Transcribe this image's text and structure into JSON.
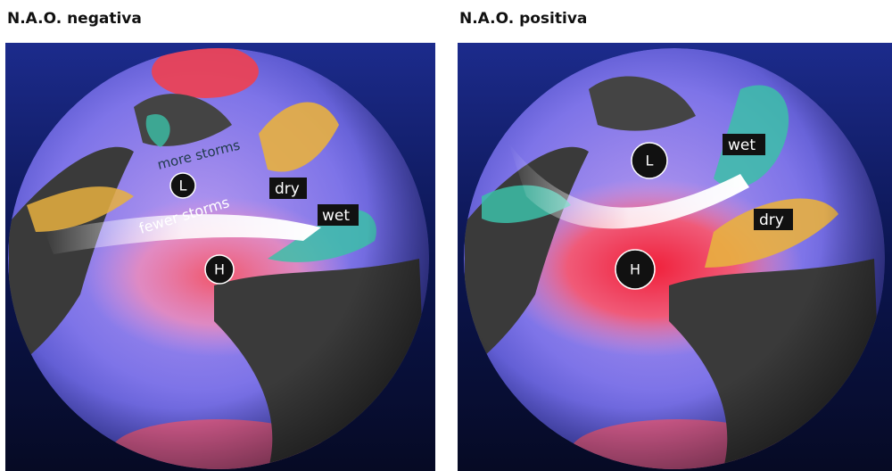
{
  "panels": [
    {
      "title": "N.A.O. negativa",
      "more_storms": "more storms",
      "fewer_storms": "fewer storms",
      "low": "L",
      "high": "H",
      "dry": "dry",
      "wet": "wet"
    },
    {
      "title": "N.A.O. positiva",
      "low": "L",
      "high": "H",
      "wet": "wet",
      "dry": "dry"
    }
  ]
}
